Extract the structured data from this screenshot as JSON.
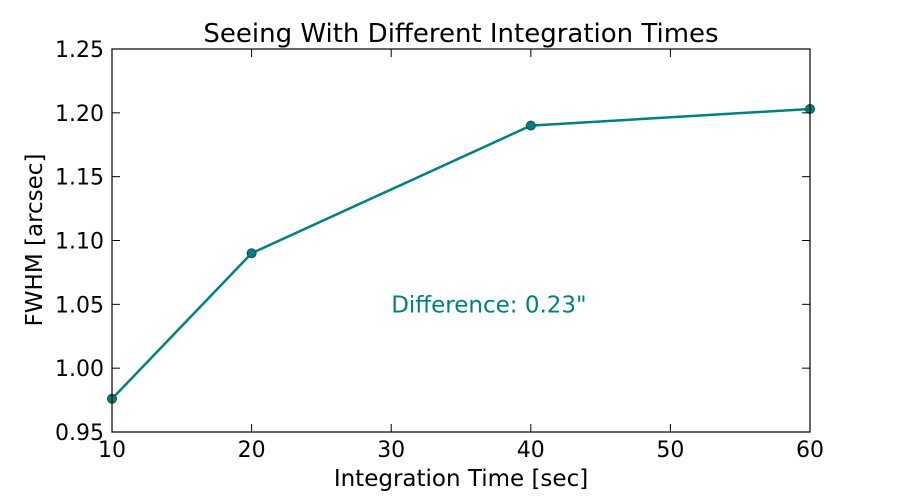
{
  "chart_data": {
    "type": "line",
    "title": "Seeing With Different Integration Times",
    "xlabel": "Integration Time [sec]",
    "ylabel": "FWHM [arcsec]",
    "xlim": [
      10,
      60
    ],
    "ylim": [
      0.95,
      1.25
    ],
    "xticks": [
      10,
      20,
      30,
      40,
      50,
      60
    ],
    "yticks": [
      0.95,
      1.0,
      1.05,
      1.1,
      1.15,
      1.2,
      1.25
    ],
    "xtick_labels": [
      "10",
      "20",
      "30",
      "40",
      "50",
      "60"
    ],
    "ytick_labels": [
      "0.95",
      "1.00",
      "1.05",
      "1.10",
      "1.15",
      "1.20",
      "1.25"
    ],
    "grid": false,
    "series": [
      {
        "name": "FWHM",
        "color": "#008080",
        "marker": "circle",
        "x": [
          10,
          20,
          40,
          60
        ],
        "y": [
          0.976,
          1.09,
          1.19,
          1.203
        ]
      }
    ],
    "annotations": [
      {
        "text": "Difference: 0.23\"",
        "x": 30,
        "y": 1.05,
        "color": "#008080"
      }
    ]
  }
}
